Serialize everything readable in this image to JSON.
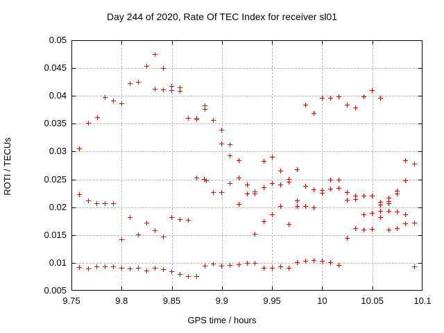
{
  "chart_data": {
    "type": "scatter",
    "title": "Day 244 of 2020, Rate Of TEC Index for receiver sl01",
    "xlabel": "GPS time / hours",
    "ylabel": "ROTI / TECUs",
    "xlim": [
      9.75,
      10.1
    ],
    "ylim": [
      0.005,
      0.05
    ],
    "xtick_labels": [
      "9.75",
      "9.8",
      "9.85",
      "9.9",
      "9.95",
      "10",
      "10.05",
      "10.1"
    ],
    "ytick_labels": [
      "0.005",
      "0.01",
      "0.015",
      "0.02",
      "0.025",
      "0.03",
      "0.035",
      "0.04",
      "0.045",
      "0.05"
    ],
    "grid": true,
    "legend": "none",
    "marker_shape": "plus",
    "marker_color": "#e60000",
    "grid_color": "#b5b5b5",
    "series": [
      {
        "name": "ROTI",
        "points": [
          [
            9.7667,
            0.0351
          ],
          [
            9.7756,
            0.0361
          ],
          [
            9.7833,
            0.0397
          ],
          [
            9.7917,
            0.0391
          ],
          [
            9.8,
            0.0386
          ],
          [
            9.8083,
            0.0422
          ],
          [
            9.8167,
            0.0424
          ],
          [
            9.825,
            0.0453
          ],
          [
            9.8333,
            0.0475
          ],
          [
            9.8333,
            0.0412
          ],
          [
            9.8417,
            0.045
          ],
          [
            9.8417,
            0.0411
          ],
          [
            9.85,
            0.0417
          ],
          [
            9.85,
            0.041
          ],
          [
            9.8583,
            0.0414
          ],
          [
            9.8583,
            0.0409
          ],
          [
            9.8667,
            0.036
          ],
          [
            9.875,
            0.036
          ],
          [
            9.875,
            0.0357
          ],
          [
            9.8833,
            0.0382
          ],
          [
            9.8833,
            0.0376
          ],
          [
            9.8917,
            0.0356
          ],
          [
            9.9833,
            0.0383
          ],
          [
            9.9917,
            0.0369
          ],
          [
            10.0,
            0.0396
          ],
          [
            10.0083,
            0.0396
          ],
          [
            10.0167,
            0.0399
          ],
          [
            10.025,
            0.0384
          ],
          [
            10.0333,
            0.0378
          ],
          [
            10.0417,
            0.0398
          ],
          [
            10.05,
            0.041
          ],
          [
            10.0583,
            0.0396
          ],
          [
            10.0833,
            0.0284
          ],
          [
            10.0917,
            0.0277
          ],
          [
            9.7583,
            0.0305
          ],
          [
            9.7583,
            0.0223
          ],
          [
            9.7667,
            0.0212
          ],
          [
            9.775,
            0.0206
          ],
          [
            9.7833,
            0.0206
          ],
          [
            9.7917,
            0.0206
          ],
          [
            9.9,
            0.0339
          ],
          [
            9.9,
            0.0314
          ],
          [
            9.9083,
            0.0312
          ],
          [
            9.9083,
            0.0292
          ],
          [
            9.9167,
            0.0284
          ],
          [
            9.9417,
            0.0283
          ],
          [
            9.95,
            0.029
          ],
          [
            9.9583,
            0.0265
          ],
          [
            9.975,
            0.0267
          ],
          [
            9.875,
            0.0252
          ],
          [
            9.8823,
            0.025
          ],
          [
            9.8847,
            0.0248
          ],
          [
            9.8917,
            0.0226
          ],
          [
            9.9,
            0.0227
          ],
          [
            9.9083,
            0.0243
          ],
          [
            9.9167,
            0.0252
          ],
          [
            9.925,
            0.024
          ],
          [
            9.925,
            0.0224
          ],
          [
            9.9333,
            0.0228
          ],
          [
            9.9333,
            0.0224
          ],
          [
            9.9417,
            0.0235
          ],
          [
            9.95,
            0.0242
          ],
          [
            9.9583,
            0.024
          ],
          [
            9.9667,
            0.025
          ],
          [
            9.9667,
            0.0245
          ],
          [
            9.975,
            0.0212
          ],
          [
            9.9833,
            0.0238
          ],
          [
            9.9917,
            0.0231
          ],
          [
            10.0,
            0.023
          ],
          [
            10.0,
            0.0225
          ],
          [
            10.0083,
            0.0249
          ],
          [
            10.0083,
            0.0233
          ],
          [
            10.0167,
            0.0249
          ],
          [
            10.0167,
            0.0234
          ],
          [
            10.025,
            0.0227
          ],
          [
            10.025,
            0.0213
          ],
          [
            10.0333,
            0.022
          ],
          [
            10.0333,
            0.0214
          ],
          [
            10.0417,
            0.022
          ],
          [
            10.05,
            0.022
          ],
          [
            10.0583,
            0.0209
          ],
          [
            10.0667,
            0.0216
          ],
          [
            10.0667,
            0.021
          ],
          [
            10.075,
            0.0229
          ],
          [
            10.075,
            0.0224
          ],
          [
            10.0833,
            0.0248
          ],
          [
            9.8,
            0.0142
          ],
          [
            9.8083,
            0.0181
          ],
          [
            9.8167,
            0.015
          ],
          [
            9.825,
            0.0171
          ],
          [
            9.8333,
            0.0158
          ],
          [
            9.8417,
            0.0146
          ],
          [
            9.85,
            0.0181
          ],
          [
            9.8583,
            0.0178
          ],
          [
            9.8667,
            0.0176
          ],
          [
            9.9167,
            0.0205
          ],
          [
            9.9333,
            0.0151
          ],
          [
            9.9417,
            0.0174
          ],
          [
            9.95,
            0.0186
          ],
          [
            9.9583,
            0.0201
          ],
          [
            9.9667,
            0.0169
          ],
          [
            9.975,
            0.0201
          ],
          [
            9.9833,
            0.0202
          ],
          [
            9.9917,
            0.0199
          ],
          [
            10.025,
            0.0144
          ],
          [
            10.0333,
            0.0161
          ],
          [
            10.0417,
            0.0186
          ],
          [
            10.0417,
            0.0159
          ],
          [
            10.05,
            0.0189
          ],
          [
            10.05,
            0.016
          ],
          [
            10.0583,
            0.0204
          ],
          [
            10.0583,
            0.0193
          ],
          [
            10.0583,
            0.0181
          ],
          [
            10.0667,
            0.0207
          ],
          [
            10.0667,
            0.0193
          ],
          [
            10.0667,
            0.0159
          ],
          [
            10.075,
            0.0192
          ],
          [
            10.075,
            0.0161
          ],
          [
            10.0833,
            0.0187
          ],
          [
            10.0833,
            0.017
          ],
          [
            10.0917,
            0.0172
          ],
          [
            9.7583,
            0.0092
          ],
          [
            9.7667,
            0.0089
          ],
          [
            9.775,
            0.0093
          ],
          [
            9.7833,
            0.0093
          ],
          [
            9.7917,
            0.0093
          ],
          [
            9.8,
            0.0091
          ],
          [
            9.8083,
            0.0089
          ],
          [
            9.8167,
            0.009
          ],
          [
            9.825,
            0.0086
          ],
          [
            9.8333,
            0.009
          ],
          [
            9.8417,
            0.0088
          ],
          [
            9.85,
            0.0084
          ],
          [
            9.8583,
            0.0079
          ],
          [
            9.8667,
            0.0076
          ],
          [
            9.875,
            0.0075
          ],
          [
            9.8833,
            0.0094
          ],
          [
            9.8917,
            0.0098
          ],
          [
            9.9,
            0.0094
          ],
          [
            9.9083,
            0.0095
          ],
          [
            9.9167,
            0.0097
          ],
          [
            9.925,
            0.0099
          ],
          [
            9.9333,
            0.0099
          ],
          [
            9.9417,
            0.0091
          ],
          [
            9.95,
            0.009
          ],
          [
            9.9583,
            0.0093
          ],
          [
            9.9667,
            0.0091
          ],
          [
            9.975,
            0.01
          ],
          [
            9.9833,
            0.0103
          ],
          [
            9.9917,
            0.0104
          ],
          [
            10.0,
            0.0103
          ],
          [
            10.0083,
            0.0101
          ],
          [
            10.0167,
            0.0096
          ],
          [
            10.0917,
            0.0093
          ]
        ]
      }
    ]
  }
}
